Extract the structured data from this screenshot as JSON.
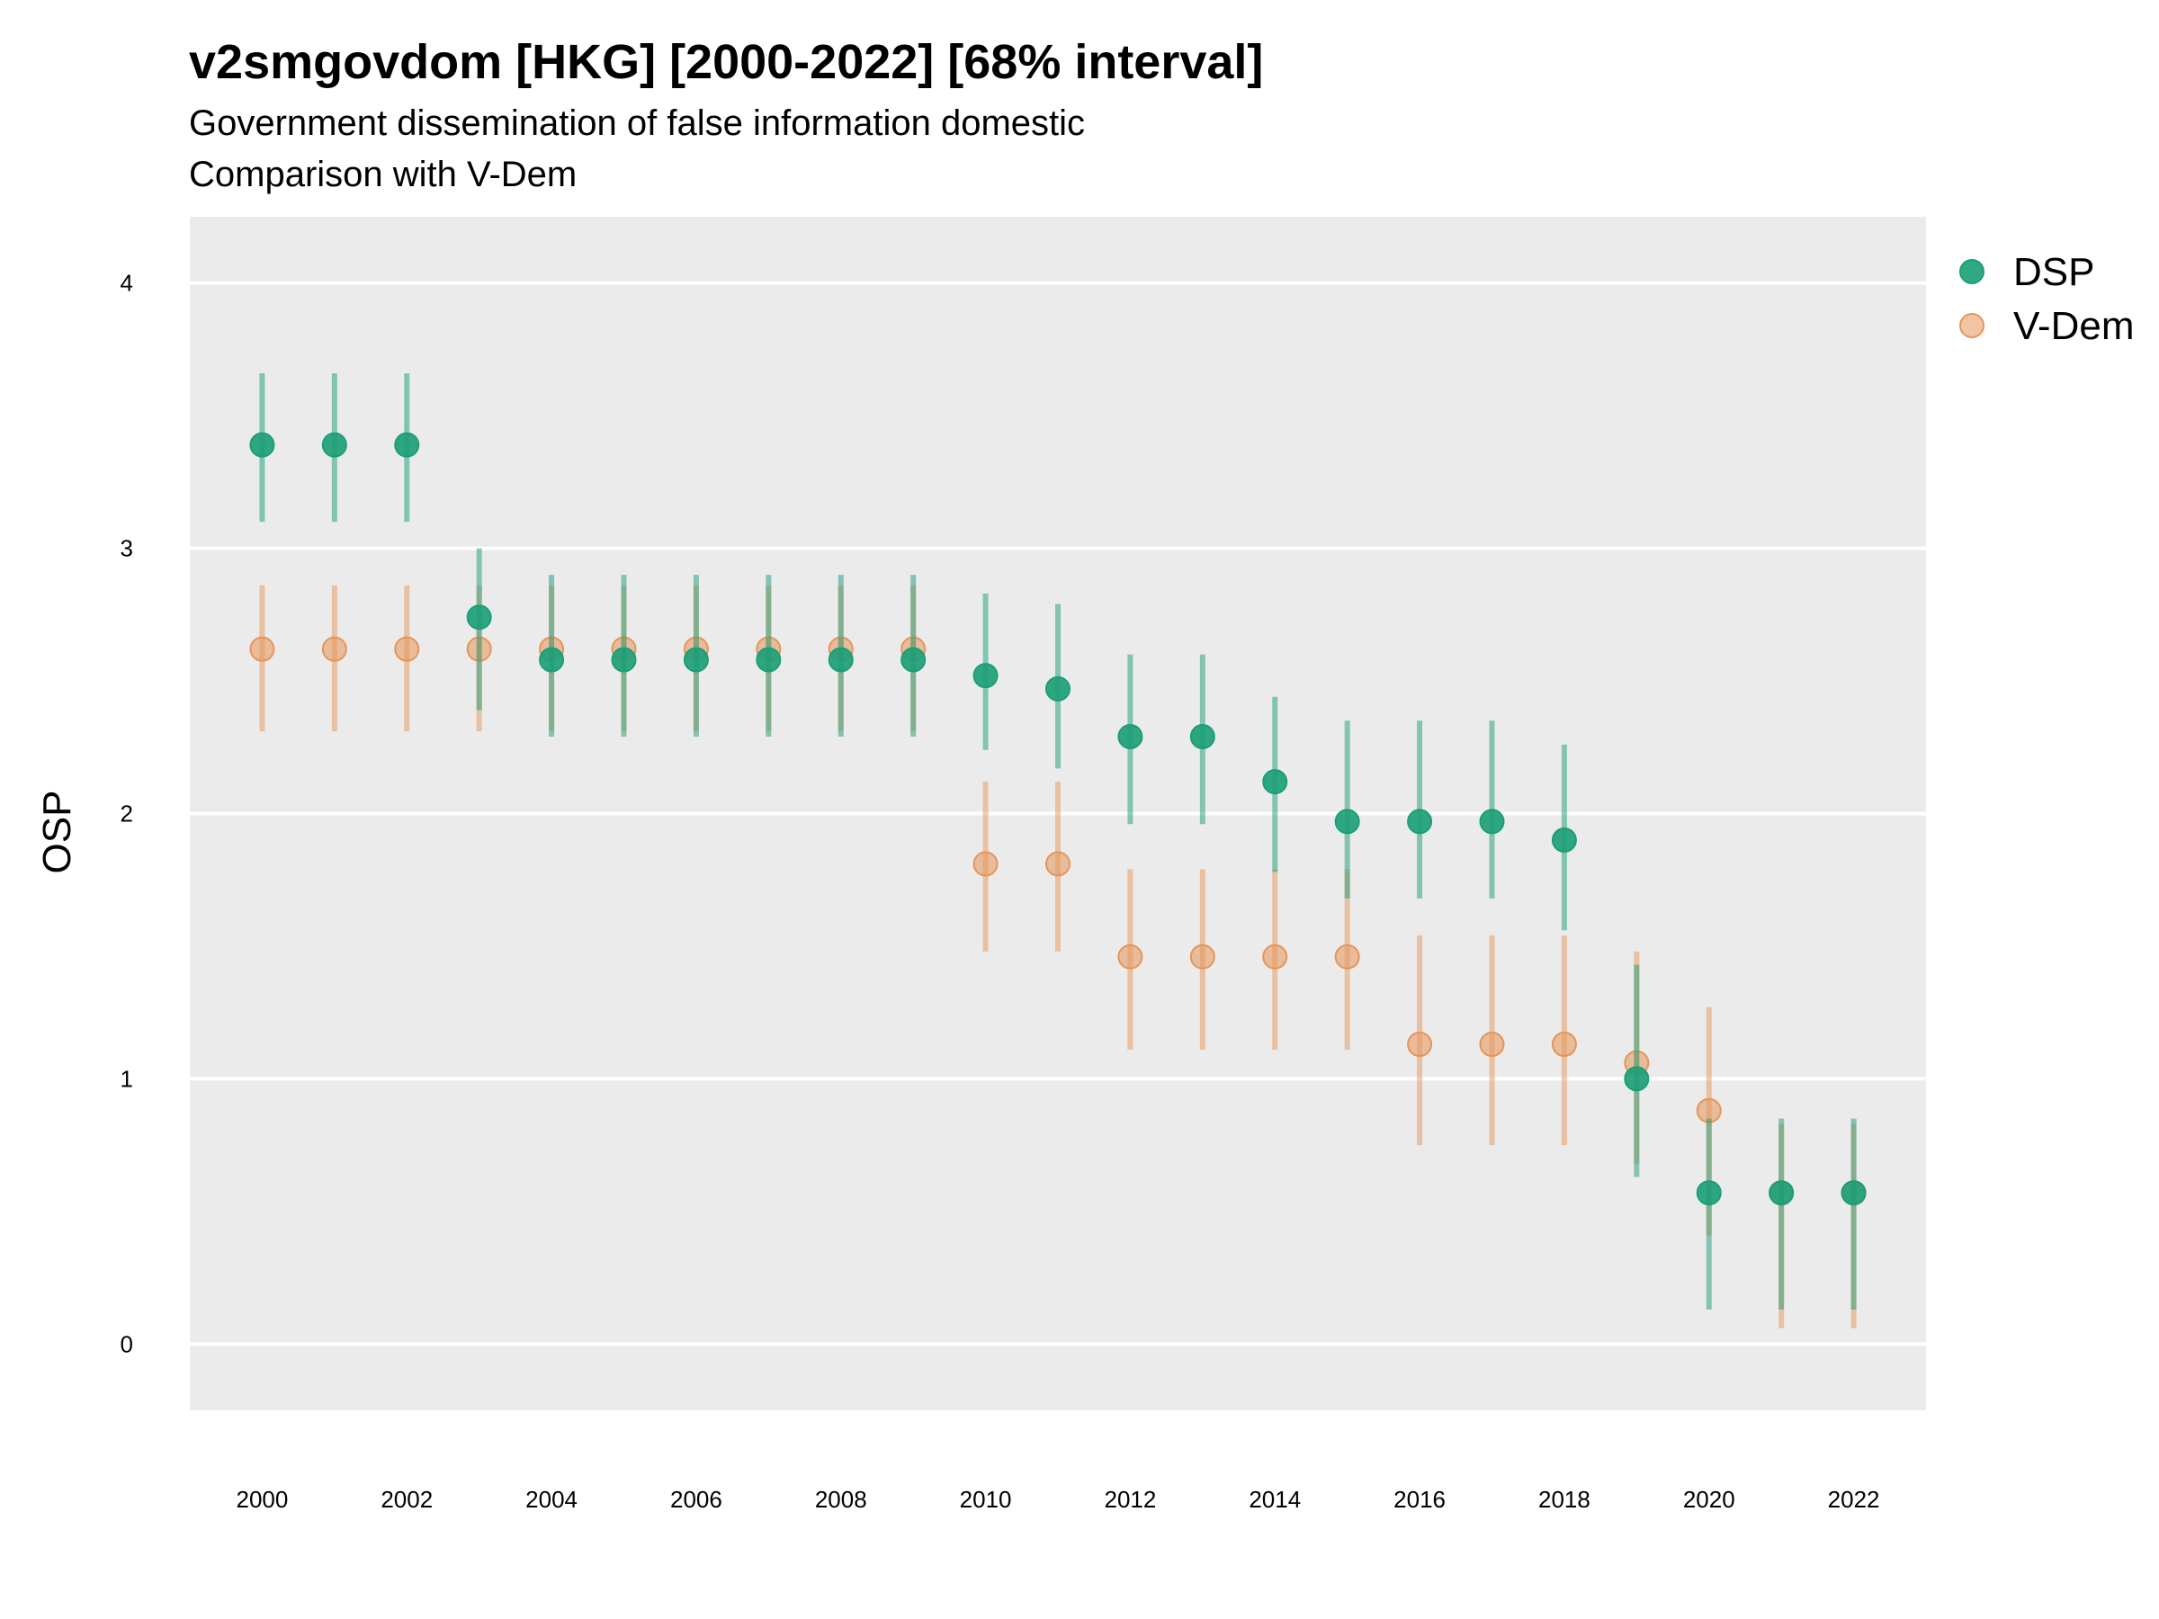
{
  "chart_data": {
    "type": "scatter",
    "title": "v2smgovdom [HKG] [2000-2022] [68% interval]",
    "subtitle": "Government dissemination of false information domestic",
    "caption": "Comparison with V-Dem",
    "xlabel": "",
    "ylabel": "OSP",
    "xlim": [
      1999,
      2023
    ],
    "ylim": [
      -0.25,
      4.25
    ],
    "x_ticks": [
      2000,
      2002,
      2004,
      2006,
      2008,
      2010,
      2012,
      2014,
      2016,
      2018,
      2020,
      2022
    ],
    "y_ticks": [
      0,
      1,
      2,
      3,
      4
    ],
    "grid": true,
    "legend_position": "right",
    "x": [
      2000,
      2001,
      2002,
      2003,
      2004,
      2005,
      2006,
      2007,
      2008,
      2009,
      2010,
      2011,
      2012,
      2013,
      2014,
      2015,
      2016,
      2017,
      2018,
      2019,
      2020,
      2021,
      2022
    ],
    "series": [
      {
        "name": "V-Dem",
        "color": "#E6955A",
        "values": [
          2.62,
          2.62,
          2.62,
          2.62,
          2.62,
          2.62,
          2.62,
          2.62,
          2.62,
          2.62,
          1.81,
          1.81,
          1.46,
          1.46,
          1.46,
          1.46,
          1.13,
          1.13,
          1.13,
          1.06,
          0.88,
          0.57,
          0.57
        ],
        "lower": [
          2.31,
          2.31,
          2.31,
          2.31,
          2.31,
          2.31,
          2.31,
          2.31,
          2.31,
          2.31,
          1.48,
          1.48,
          1.11,
          1.11,
          1.11,
          1.11,
          0.75,
          0.75,
          0.75,
          0.68,
          0.41,
          0.06,
          0.06
        ],
        "upper": [
          2.86,
          2.86,
          2.86,
          2.86,
          2.86,
          2.86,
          2.86,
          2.86,
          2.86,
          2.86,
          2.12,
          2.12,
          1.79,
          1.79,
          1.79,
          1.79,
          1.54,
          1.54,
          1.54,
          1.48,
          1.27,
          0.83,
          0.83
        ]
      },
      {
        "name": "DSP",
        "color": "#1B9E77",
        "values": [
          3.39,
          3.39,
          3.39,
          2.74,
          2.58,
          2.58,
          2.58,
          2.58,
          2.58,
          2.58,
          2.52,
          2.47,
          2.29,
          2.29,
          2.12,
          1.97,
          1.97,
          1.97,
          1.9,
          1.0,
          0.57,
          0.57,
          0.57
        ],
        "lower": [
          3.1,
          3.1,
          3.1,
          2.39,
          2.29,
          2.29,
          2.29,
          2.29,
          2.29,
          2.29,
          2.24,
          2.17,
          1.96,
          1.96,
          1.78,
          1.68,
          1.68,
          1.68,
          1.56,
          0.63,
          0.13,
          0.13,
          0.13
        ],
        "upper": [
          3.66,
          3.66,
          3.66,
          3.0,
          2.9,
          2.9,
          2.9,
          2.9,
          2.9,
          2.9,
          2.83,
          2.79,
          2.6,
          2.6,
          2.44,
          2.35,
          2.35,
          2.35,
          2.26,
          1.43,
          0.85,
          0.85,
          0.85
        ]
      }
    ]
  }
}
